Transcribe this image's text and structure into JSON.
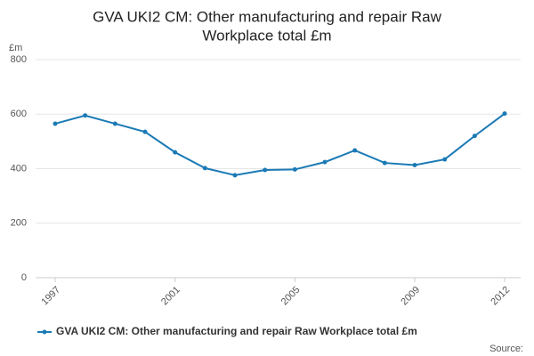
{
  "chart_data": {
    "type": "line",
    "title": "GVA UKI2 CM: Other manufacturing and repair Raw Workplace total £m",
    "y_label": "£m",
    "source": "Source:",
    "x": [
      1997,
      1998,
      1999,
      2000,
      2001,
      2002,
      2003,
      2004,
      2005,
      2006,
      2007,
      2008,
      2009,
      2010,
      2011,
      2012
    ],
    "series": [
      {
        "name": "GVA UKI2 CM: Other manufacturing and repair Raw Workplace total £m",
        "color": "#1a7ab5",
        "values": [
          565,
          595,
          565,
          535,
          460,
          402,
          376,
          395,
          397,
          424,
          467,
          421,
          413,
          434,
          520,
          602
        ]
      }
    ],
    "xlim": [
      1997,
      2012
    ],
    "xticks": [
      1997,
      2001,
      2005,
      2009,
      2012
    ],
    "ylim": [
      0,
      800
    ],
    "yticks": [
      0,
      200,
      400,
      600,
      800
    ],
    "grid": true
  }
}
